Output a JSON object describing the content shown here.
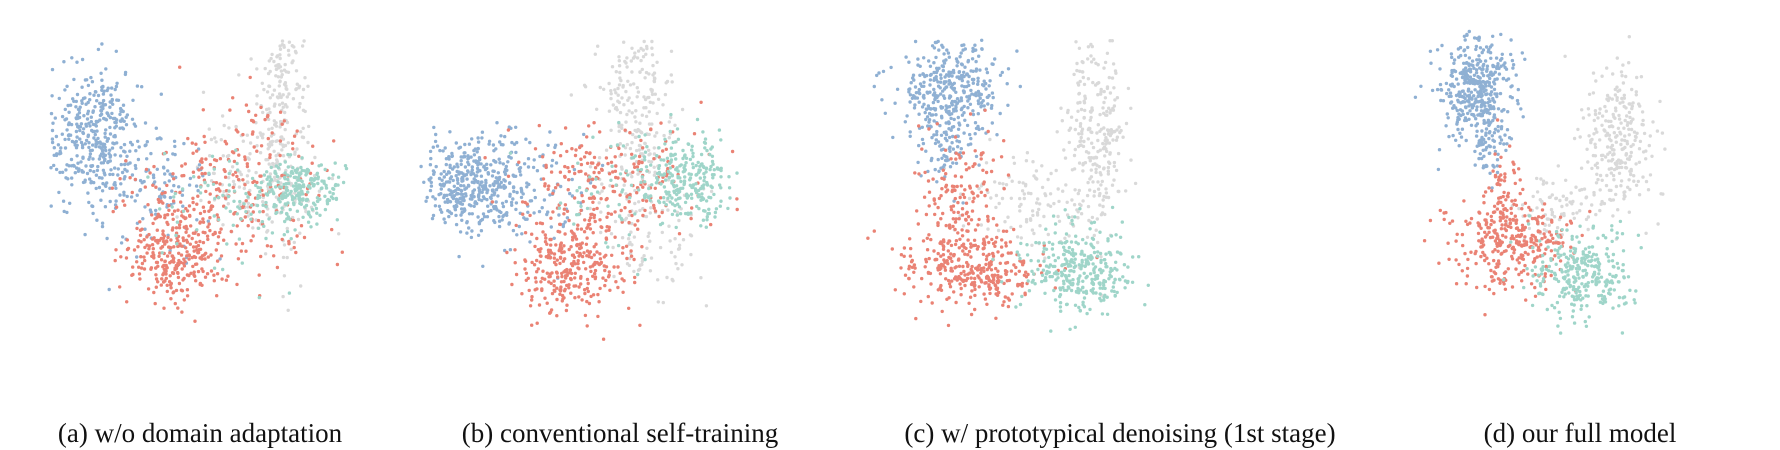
{
  "colors": {
    "blue": "#8fb0d3",
    "red": "#ea8274",
    "teal": "#9fd5c9",
    "gray": "#d9d9d9"
  },
  "chart_data": [
    {
      "type": "scatter",
      "caption": "(a) w/o domain adaptation",
      "clusters": [
        {
          "color": "gray",
          "cx": 0.66,
          "cy": 0.72,
          "sx": 0.1,
          "sy": 0.55,
          "n": 260
        },
        {
          "color": "gray",
          "cx": 0.45,
          "cy": 0.1,
          "sx": 0.22,
          "sy": 0.25,
          "n": 120
        },
        {
          "color": "blue",
          "cx": -0.85,
          "cy": 0.45,
          "sx": 0.2,
          "sy": 0.28,
          "n": 380
        },
        {
          "color": "blue",
          "cx": -0.4,
          "cy": -0.05,
          "sx": 0.25,
          "sy": 0.25,
          "n": 120
        },
        {
          "color": "red",
          "cx": -0.2,
          "cy": -0.5,
          "sx": 0.2,
          "sy": 0.2,
          "n": 280
        },
        {
          "color": "red",
          "cx": 0.25,
          "cy": 0.0,
          "sx": 0.38,
          "sy": 0.3,
          "n": 260
        },
        {
          "color": "teal",
          "cx": 0.8,
          "cy": 0.0,
          "sx": 0.18,
          "sy": 0.12,
          "n": 230
        },
        {
          "color": "teal",
          "cx": 0.3,
          "cy": -0.1,
          "sx": 0.3,
          "sy": 0.25,
          "n": 80
        }
      ],
      "xlim": [
        -1.2,
        1.2
      ],
      "ylim": [
        -1.2,
        1.2
      ]
    },
    {
      "type": "scatter",
      "caption": "(b) conventional self-training",
      "clusters": [
        {
          "color": "gray",
          "cx": 0.4,
          "cy": 0.7,
          "sx": 0.15,
          "sy": 0.45,
          "n": 260
        },
        {
          "color": "gray",
          "cx": 0.55,
          "cy": -0.4,
          "sx": 0.2,
          "sy": 0.25,
          "n": 80
        },
        {
          "color": "blue",
          "cx": -0.8,
          "cy": 0.05,
          "sx": 0.2,
          "sy": 0.18,
          "n": 400
        },
        {
          "color": "blue",
          "cx": -0.4,
          "cy": 0.0,
          "sx": 0.25,
          "sy": 0.25,
          "n": 100
        },
        {
          "color": "red",
          "cx": -0.05,
          "cy": -0.6,
          "sx": 0.2,
          "sy": 0.2,
          "n": 300
        },
        {
          "color": "red",
          "cx": 0.2,
          "cy": 0.05,
          "sx": 0.35,
          "sy": 0.25,
          "n": 220
        },
        {
          "color": "teal",
          "cx": 0.8,
          "cy": 0.1,
          "sx": 0.18,
          "sy": 0.18,
          "n": 260
        },
        {
          "color": "teal",
          "cx": 0.3,
          "cy": 0.0,
          "sx": 0.25,
          "sy": 0.25,
          "n": 60
        }
      ],
      "xlim": [
        -1.2,
        1.2
      ],
      "ylim": [
        -1.2,
        1.2
      ]
    },
    {
      "type": "scatter",
      "caption": "(c) w/ prototypical denoising (1st stage)",
      "clusters": [
        {
          "color": "gray",
          "cx": 0.7,
          "cy": 0.45,
          "sx": 0.12,
          "sy": 0.4,
          "n": 260
        },
        {
          "color": "gray",
          "cx": 0.15,
          "cy": -0.1,
          "sx": 0.25,
          "sy": 0.2,
          "n": 110
        },
        {
          "color": "blue",
          "cx": -0.5,
          "cy": 0.8,
          "sx": 0.2,
          "sy": 0.2,
          "n": 380
        },
        {
          "color": "blue",
          "cx": -0.5,
          "cy": 0.3,
          "sx": 0.1,
          "sy": 0.15,
          "n": 60
        },
        {
          "color": "red",
          "cx": -0.3,
          "cy": -0.65,
          "sx": 0.3,
          "sy": 0.15,
          "n": 300
        },
        {
          "color": "red",
          "cx": -0.4,
          "cy": -0.1,
          "sx": 0.15,
          "sy": 0.3,
          "n": 160
        },
        {
          "color": "teal",
          "cx": 0.55,
          "cy": -0.65,
          "sx": 0.22,
          "sy": 0.18,
          "n": 320
        }
      ],
      "xlim": [
        -1.2,
        1.2
      ],
      "ylim": [
        -1.2,
        1.2
      ]
    },
    {
      "type": "scatter",
      "caption": "(d) our full model",
      "clusters": [
        {
          "color": "gray",
          "cx": 0.55,
          "cy": 0.35,
          "sx": 0.15,
          "sy": 0.3,
          "n": 260
        },
        {
          "color": "gray",
          "cx": 0.05,
          "cy": -0.15,
          "sx": 0.18,
          "sy": 0.15,
          "n": 80
        },
        {
          "color": "blue",
          "cx": -0.6,
          "cy": 0.75,
          "sx": 0.15,
          "sy": 0.2,
          "n": 400
        },
        {
          "color": "blue",
          "cx": -0.5,
          "cy": 0.3,
          "sx": 0.08,
          "sy": 0.12,
          "n": 60
        },
        {
          "color": "red",
          "cx": -0.3,
          "cy": -0.45,
          "sx": 0.25,
          "sy": 0.18,
          "n": 320
        },
        {
          "color": "red",
          "cx": -0.4,
          "cy": -0.05,
          "sx": 0.08,
          "sy": 0.15,
          "n": 60
        },
        {
          "color": "teal",
          "cx": 0.25,
          "cy": -0.7,
          "sx": 0.2,
          "sy": 0.18,
          "n": 300
        }
      ],
      "xlim": [
        -1.2,
        1.2
      ],
      "ylim": [
        -1.2,
        1.2
      ]
    }
  ]
}
